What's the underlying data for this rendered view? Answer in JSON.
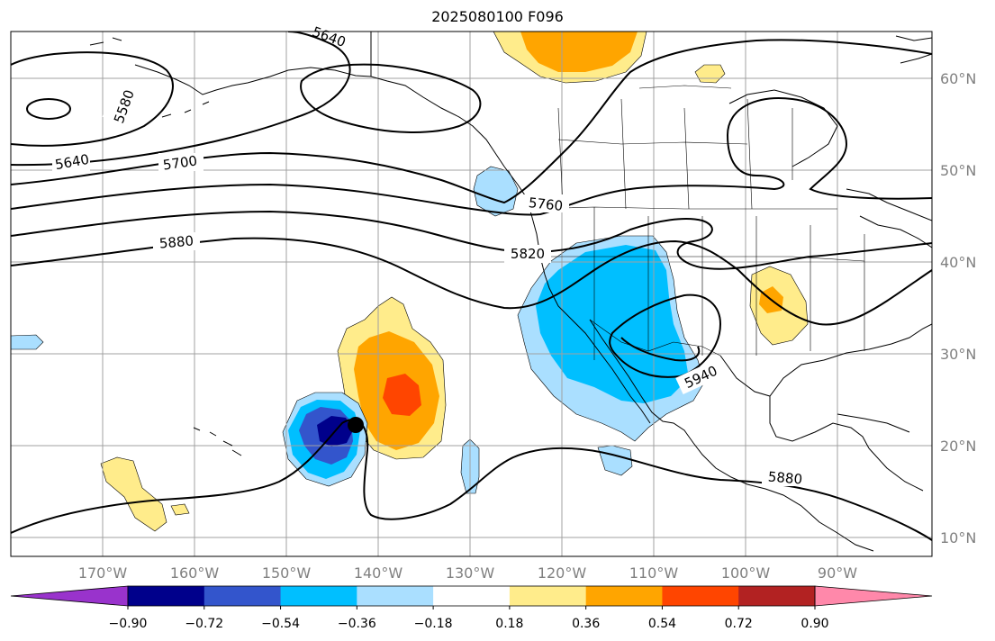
{
  "title": "2025080100 F096",
  "map": {
    "lat_labels": [
      "60°N",
      "50°N",
      "40°N",
      "30°N",
      "20°N",
      "10°N"
    ],
    "lon_labels": [
      "170°W",
      "160°W",
      "150°W",
      "140°W",
      "130°W",
      "120°W",
      "110°W",
      "100°W",
      "90°W"
    ],
    "contour_labels": [
      "5580",
      "5640",
      "5640",
      "5700",
      "5760",
      "5820",
      "5880",
      "5880",
      "5940"
    ],
    "colors": {
      "coast": "#000000",
      "grid": "#a0a0a0",
      "contour": "#000000"
    }
  },
  "colorbar": {
    "labels": [
      "−0.90",
      "−0.72",
      "−0.54",
      "−0.36",
      "−0.18",
      "0.18",
      "0.36",
      "0.54",
      "0.72",
      "0.90"
    ],
    "colors": [
      "#9933cc",
      "#00008b",
      "#3355cc",
      "#00bfff",
      "#aadfff",
      "#ffffff",
      "#ffec8b",
      "#ffa500",
      "#ff4500",
      "#b22222",
      "#ff88aa"
    ]
  }
}
